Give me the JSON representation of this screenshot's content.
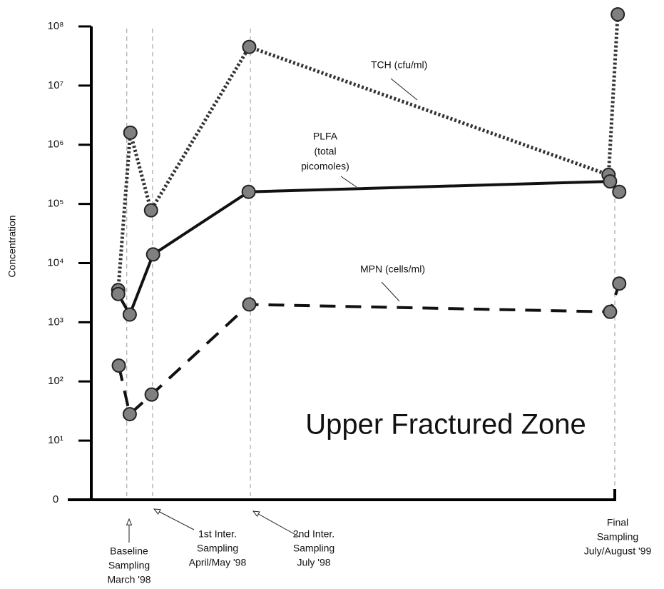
{
  "chart_data": {
    "type": "line",
    "ylabel": "Concentration",
    "log": true,
    "ylim": [
      1,
      100000000
    ],
    "yticks": [
      {
        "value": 1,
        "label": "0"
      },
      {
        "value": 10,
        "label": "10¹"
      },
      {
        "value": 100,
        "label": "10²"
      },
      {
        "value": 1000,
        "label": "10³"
      },
      {
        "value": 10000,
        "label": "10⁴"
      },
      {
        "value": 100000,
        "label": "10⁵"
      },
      {
        "value": 1000000,
        "label": "10⁶"
      },
      {
        "value": 10000000,
        "label": "10⁷"
      },
      {
        "value": 100000000,
        "label": "10⁸"
      }
    ],
    "xlim": [
      -1.2,
      16.5
    ],
    "series": [
      {
        "name": "TCH (cfu/ml)",
        "color": "#333333",
        "dash": "dotted",
        "x": [
          -0.29,
          0.12,
          0.82,
          4.14,
          16.29,
          16.6
        ],
        "values": [
          3500,
          1600000,
          78000,
          45000000,
          310000,
          160000000
        ]
      },
      {
        "name": "PLFA (total picomoles)",
        "label_lines": [
          "PLFA",
          "(total",
          "picomoles)"
        ],
        "color": "#111111",
        "dash": "solid",
        "x": [
          -0.29,
          0.1,
          0.89,
          4.12,
          16.34,
          16.65
        ],
        "values": [
          3000,
          1350,
          14000,
          160000,
          240000,
          160000
        ]
      },
      {
        "name": "MPN (cells/ml)",
        "color": "#111111",
        "dash": "dashed",
        "x": [
          -0.27,
          0.1,
          0.84,
          4.14,
          16.34,
          16.65
        ],
        "values": [
          185,
          28,
          60,
          2000,
          1500,
          4500
        ]
      }
    ],
    "annotation": "Upper Fractured Zone",
    "events": [
      {
        "x": 0,
        "lines": [
          "Baseline",
          "Sampling",
          "March '98"
        ]
      },
      {
        "x": 0.87,
        "lines": [
          "1st Inter.",
          "Sampling",
          "April/May '98"
        ]
      },
      {
        "x": 4.18,
        "lines": [
          "2nd Inter.",
          "Sampling",
          "July '98"
        ]
      },
      {
        "x": 16.5,
        "lines": [
          "Final",
          "Sampling",
          "July/August '99"
        ]
      }
    ]
  }
}
